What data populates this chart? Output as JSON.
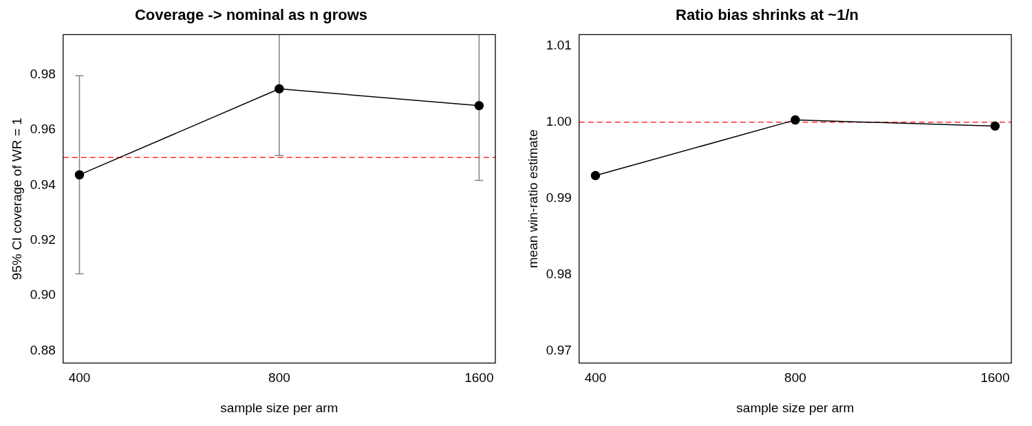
{
  "chart_data": [
    {
      "type": "line",
      "title": "Coverage -> nominal as n grows",
      "xlabel": "sample size per arm",
      "ylabel": "95% CI coverage of WR = 1",
      "log": "x",
      "grid": false,
      "marker": "circle",
      "line_style": "solid",
      "x": [
        400,
        800,
        1600
      ],
      "xlim": [
        378,
        1693
      ],
      "xticks": [
        400,
        800,
        1600
      ],
      "ylim": [
        0.8756,
        0.9944
      ],
      "yticks": [
        0.88,
        {
          "value": 0.9,
          "label": "0.90"
        },
        0.92,
        0.94,
        0.96,
        0.98
      ],
      "series": [
        {
          "color": "#000000",
          "values": [
            0.9437,
            0.9748,
            0.9687
          ],
          "errors": [
            [
              0.9079,
              0.9795
            ],
            [
              0.9507,
              0.9944
            ],
            [
              0.9417,
              0.9944
            ]
          ]
        }
      ],
      "ref_lines": [
        {
          "axis": "y",
          "value": 0.95,
          "color": "#ff0000",
          "line_style": "dashed"
        }
      ]
    },
    {
      "type": "line",
      "title": "Ratio bias shrinks at ~1/n",
      "xlabel": "sample size per arm",
      "ylabel": "mean win-ratio estimate",
      "log": "x",
      "grid": false,
      "marker": "circle",
      "line_style": "solid",
      "x": [
        400,
        800,
        1600
      ],
      "xlim": [
        378,
        1693
      ],
      "xticks": [
        400,
        800,
        1600
      ],
      "ylim": [
        0.9684,
        1.0115
      ],
      "yticks": [
        0.97,
        0.98,
        0.99,
        {
          "value": 1.0,
          "label": "1.00"
        },
        1.01
      ],
      "series": [
        {
          "color": "#000000",
          "values": [
            0.993,
            1.0003,
            0.9995
          ]
        }
      ],
      "ref_lines": [
        {
          "axis": "y",
          "value": 1.0,
          "color": "#ff0000",
          "line_style": "dashed"
        }
      ]
    }
  ]
}
